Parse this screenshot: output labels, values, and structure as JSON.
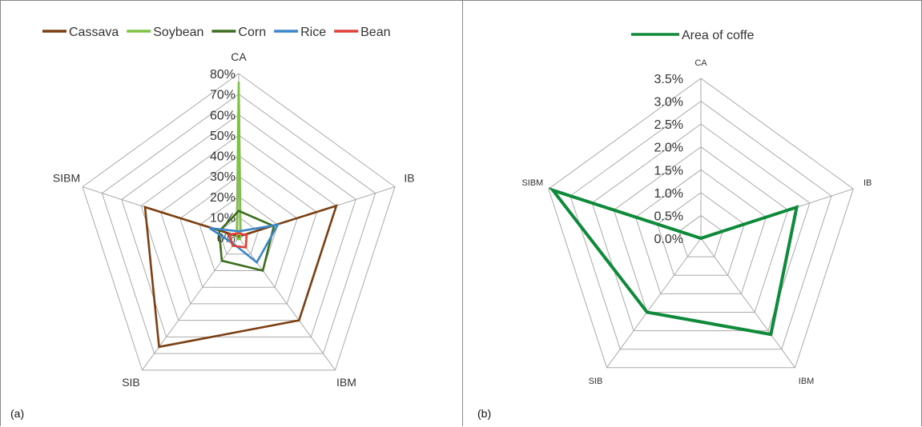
{
  "chart_data": [
    {
      "type": "radar",
      "panel_label": "(a)",
      "axes": [
        "CA",
        "IB",
        "IBM",
        "SIB",
        "SIBM"
      ],
      "ticks": [
        "0%",
        "10%",
        "20%",
        "30%",
        "40%",
        "50%",
        "60%",
        "70%",
        "80%"
      ],
      "rmax": 80,
      "legend_position": "top",
      "series": [
        {
          "name": "Cassava",
          "color": "#7b3f12",
          "values": [
            0.5,
            50,
            50,
            66,
            48
          ]
        },
        {
          "name": "Soybean",
          "color": "#7dc242",
          "values": [
            76,
            1,
            1,
            1,
            1
          ]
        },
        {
          "name": "Corn",
          "color": "#3c6e1f",
          "values": [
            13,
            18,
            20,
            14,
            10
          ]
        },
        {
          "name": "Rice",
          "color": "#3a86c8",
          "values": [
            3,
            20,
            15,
            4,
            15
          ]
        },
        {
          "name": "Bean",
          "color": "#e0403a",
          "values": [
            2,
            4,
            6,
            5,
            5
          ]
        }
      ]
    },
    {
      "type": "radar",
      "panel_label": "(b)",
      "axes": [
        "CA",
        "IB",
        "IBM",
        "SIB",
        "SIBM"
      ],
      "ticks": [
        "0.0%",
        "0.5%",
        "1.0%",
        "1.5%",
        "2.0%",
        "2.5%",
        "3.0%",
        "3.5%"
      ],
      "rmax": 3.5,
      "legend_position": "top",
      "series": [
        {
          "name": "Area of coffe",
          "color": "#0e8a3a",
          "values": [
            0.0,
            2.2,
            2.6,
            2.0,
            3.4
          ]
        }
      ]
    }
  ]
}
